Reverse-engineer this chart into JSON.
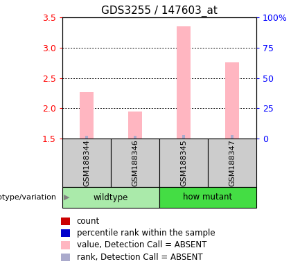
{
  "title": "GDS3255 / 147603_at",
  "samples": [
    "GSM188344",
    "GSM188346",
    "GSM188345",
    "GSM188347"
  ],
  "ylim_left": [
    1.5,
    3.5
  ],
  "yticks_left": [
    1.5,
    2.0,
    2.5,
    3.0,
    3.5
  ],
  "ylim_right": [
    0,
    100
  ],
  "yticks_right": [
    0,
    25,
    50,
    75,
    100
  ],
  "yticklabels_right": [
    "0",
    "25",
    "50",
    "75",
    "100%"
  ],
  "bar_bottom": 1.5,
  "pink_bar_values": [
    2.27,
    1.95,
    3.35,
    2.76
  ],
  "blue_bar_values": [
    1.545,
    1.545,
    1.555,
    1.555
  ],
  "pink_color": "#ffb6c1",
  "blue_color": "#aaaacc",
  "sample_box_color": "#cccccc",
  "wildtype_color": "#aaeaaa",
  "howmutant_color": "#44dd44",
  "legend_items": [
    {
      "color": "#cc0000",
      "label": "count"
    },
    {
      "color": "#0000cc",
      "label": "percentile rank within the sample"
    },
    {
      "color": "#ffb6c1",
      "label": "value, Detection Call = ABSENT"
    },
    {
      "color": "#aaaacc",
      "label": "rank, Detection Call = ABSENT"
    }
  ],
  "left_label": "genotype/variation",
  "title_fontsize": 11,
  "tick_fontsize": 9,
  "legend_fontsize": 8.5
}
